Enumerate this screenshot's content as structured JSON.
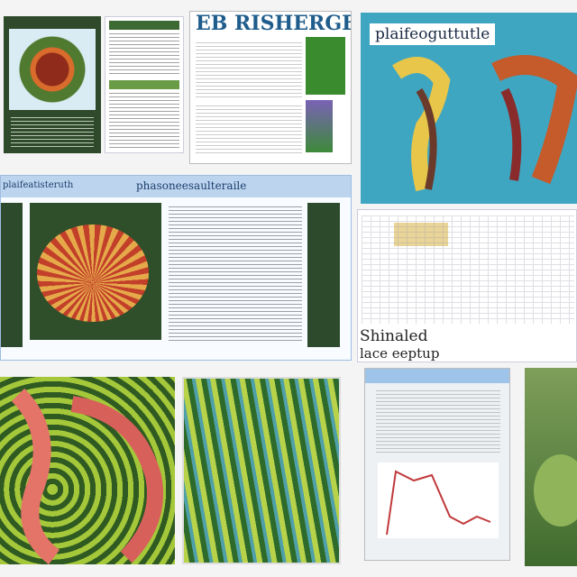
{
  "tiles": {
    "t1": {},
    "t2": {},
    "t3": {
      "heading": "EB RISHERGE"
    },
    "t4": {
      "heading": "plaifeoguttutle"
    },
    "t5": {
      "header_left": "plaifeatisteruth",
      "header_center": "phasoneesaulteraile"
    },
    "t6": {
      "heading_line1": "Shinaled",
      "heading_line2": "lace eeptup"
    },
    "t7": {},
    "t8": {},
    "t9": {},
    "t10": {}
  },
  "colors": {
    "page": "#f4f4f4",
    "dark_green": "#2e4f2a",
    "sky_blue": "#3fa6c2",
    "header_blue": "#bcd4ee",
    "chart_red": "#c0393b"
  },
  "icons": [
    "dandelion-image",
    "creature-image",
    "coral-fan-image",
    "tentacle-image",
    "algae-image",
    "line-chart-image",
    "frog-image"
  ]
}
